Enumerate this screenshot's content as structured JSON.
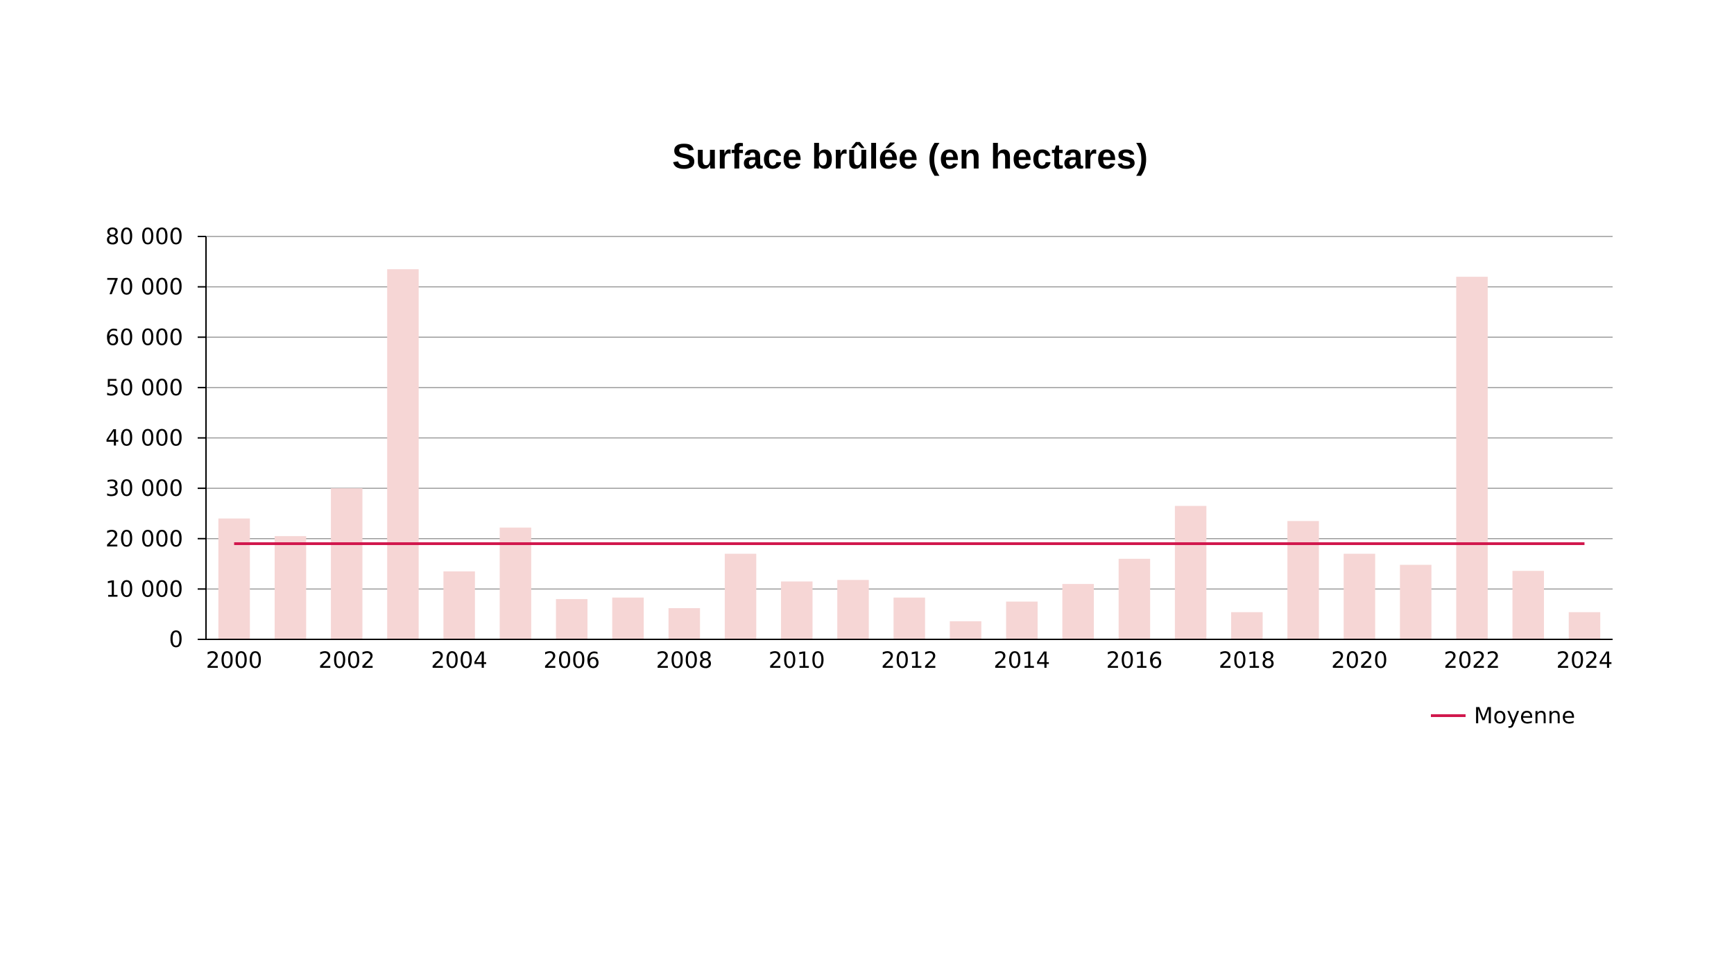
{
  "chart_data": {
    "type": "bar",
    "title": "Surface brûlée (en hectares)",
    "xlabel": "",
    "ylabel": "",
    "categories": [
      "2000",
      "2001",
      "2002",
      "2003",
      "2004",
      "2005",
      "2006",
      "2007",
      "2008",
      "2009",
      "2010",
      "2011",
      "2012",
      "2013",
      "2014",
      "2015",
      "2016",
      "2017",
      "2018",
      "2019",
      "2020",
      "2021",
      "2022",
      "2023",
      "2024"
    ],
    "x_tick_labels": [
      "2000",
      "2002",
      "2004",
      "2006",
      "2008",
      "2010",
      "2012",
      "2014",
      "2016",
      "2018",
      "2020",
      "2022",
      "2024"
    ],
    "values": [
      24000,
      20500,
      30000,
      73500,
      13500,
      22200,
      8000,
      8300,
      6200,
      17000,
      11500,
      11800,
      8300,
      3600,
      7500,
      11000,
      16000,
      26500,
      5400,
      23500,
      17000,
      14800,
      72000,
      13600,
      5400
    ],
    "bar_color": "#f6d6d5",
    "ylim": [
      0,
      80000
    ],
    "y_ticks": [
      0,
      10000,
      20000,
      30000,
      40000,
      50000,
      60000,
      70000,
      80000
    ],
    "y_tick_labels": [
      "0",
      "10 000",
      "20 000",
      "30 000",
      "40 000",
      "50 000",
      "60 000",
      "70 000",
      "80 000"
    ],
    "grid": true,
    "grid_color": "#9a9a9a",
    "series": [
      {
        "name": "Moyenne",
        "type": "line",
        "value": 19000,
        "color": "#d1184d"
      }
    ],
    "legend": {
      "position": "bottom-right",
      "entries": [
        "Moyenne"
      ]
    }
  }
}
